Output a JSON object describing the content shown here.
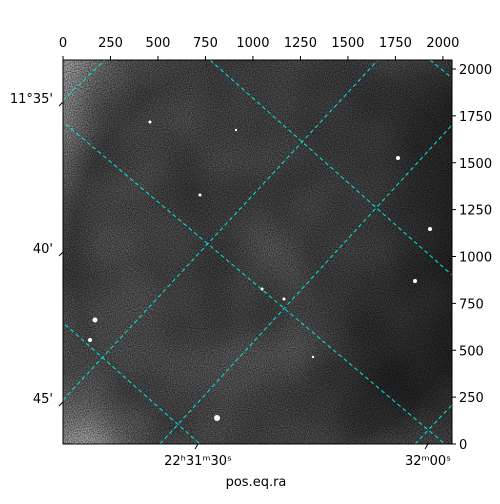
{
  "chart_data": {
    "type": "image",
    "xlabel": "pos.eq.ra",
    "xlim": [
      0,
      2048
    ],
    "xticks": [
      0,
      250,
      500,
      750,
      1000,
      1250,
      1500,
      1750,
      2000
    ],
    "ylim": [
      0,
      2048
    ],
    "yticks": [
      0,
      250,
      500,
      750,
      1000,
      1250,
      1500,
      1750,
      2000
    ],
    "ra_ticks": [
      "22ʰ31ᵐ30ˢ",
      "32ᵐ00ˢ"
    ],
    "dec_ticks": [
      "11°35'",
      "40'",
      "45'"
    ],
    "grid_color": "#00e5e5"
  }
}
